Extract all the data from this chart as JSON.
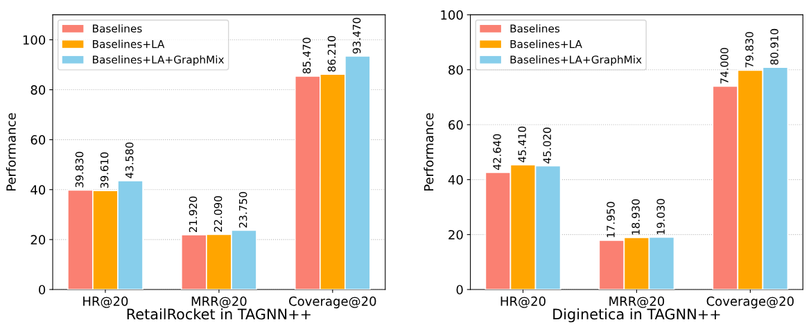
{
  "chart_data": [
    {
      "type": "bar",
      "xlabel": "RetailRocket in TAGNN++",
      "ylabel": "Performance",
      "categories": [
        "HR@20",
        "MRR@20",
        "Coverage@20"
      ],
      "series": [
        {
          "name": "Baselines",
          "color": "#fa8072",
          "values": [
            39.83,
            21.92,
            85.47
          ],
          "value_labels": [
            "39.830",
            "21.920",
            "85.470"
          ]
        },
        {
          "name": "Baselines+LA",
          "color": "#ffa500",
          "values": [
            39.61,
            22.09,
            86.21
          ],
          "value_labels": [
            "39.610",
            "22.090",
            "86.210"
          ]
        },
        {
          "name": "Baselines+LA+GraphMix",
          "color": "#87ceeb",
          "values": [
            43.58,
            23.75,
            93.47
          ],
          "value_labels": [
            "43.580",
            "23.750",
            "93.470"
          ]
        }
      ],
      "ylim": [
        0,
        110
      ],
      "yticks": [
        0,
        20,
        40,
        60,
        80,
        100
      ],
      "grid": "y",
      "legend": "top left"
    },
    {
      "type": "bar",
      "xlabel": "Diginetica in TAGNN++",
      "ylabel": "Performance",
      "categories": [
        "HR@20",
        "MRR@20",
        "Coverage@20"
      ],
      "series": [
        {
          "name": "Baselines",
          "color": "#fa8072",
          "values": [
            42.64,
            17.95,
            74.0
          ],
          "value_labels": [
            "42.640",
            "17.950",
            "74.000"
          ]
        },
        {
          "name": "Baselines+LA",
          "color": "#ffa500",
          "values": [
            45.41,
            18.93,
            79.83
          ],
          "value_labels": [
            "45.410",
            "18.930",
            "79.830"
          ]
        },
        {
          "name": "Baselines+LA+GraphMix",
          "color": "#87ceeb",
          "values": [
            45.02,
            19.03,
            80.91
          ],
          "value_labels": [
            "45.020",
            "19.030",
            "80.910"
          ]
        }
      ],
      "ylim": [
        0,
        100
      ],
      "yticks": [
        0,
        20,
        40,
        60,
        80,
        100
      ],
      "grid": "y",
      "legend": "top left"
    }
  ]
}
